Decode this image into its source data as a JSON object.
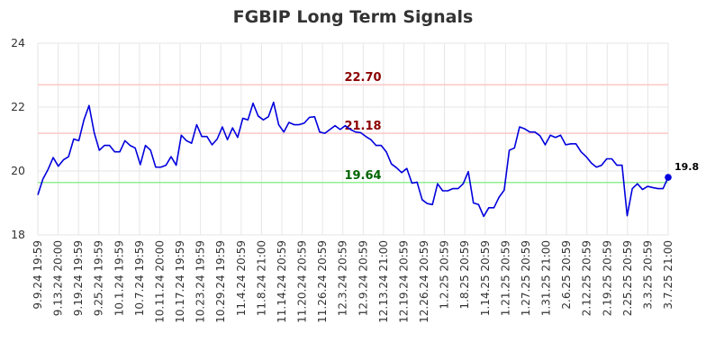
{
  "chart_data": {
    "type": "line",
    "title": "FGBIP Long Term Signals",
    "xlabel": "",
    "ylabel": "",
    "ylim": [
      18,
      24
    ],
    "yticks": [
      "18",
      "20",
      "22",
      "24"
    ],
    "grid": true,
    "xtick_labels": [
      "9.9.24 19:59",
      "9.13.24 20:00",
      "9.19.24 19:59",
      "9.25.24 19:59",
      "10.1.24 19:59",
      "10.7.24 19:59",
      "10.11.24 20:00",
      "10.17.24 19:59",
      "10.23.24 19:59",
      "10.29.24 19:59",
      "11.4.24 20:59",
      "11.8.24 21:00",
      "11.14.24 20:59",
      "11.20.24 20:59",
      "11.26.24 20:59",
      "12.3.24 20:59",
      "12.9.24 20:59",
      "12.13.24 21:00",
      "12.19.24 20:59",
      "12.26.24 20:59",
      "1.2.25 20:59",
      "1.8.25 20:59",
      "1.14.25 20:59",
      "1.21.25 20:59",
      "1.27.25 20:59",
      "1.31.25 21:00",
      "2.6.25 20:59",
      "2.12.25 20:59",
      "2.19.25 20:59",
      "2.25.25 20:59",
      "3.3.25 20:59",
      "3.7.25 21:00"
    ],
    "reference_lines": [
      {
        "value": 22.7,
        "label": "22.70",
        "line_color": "#ffc8c8",
        "label_color": "#8b0000"
      },
      {
        "value": 21.18,
        "label": "21.18",
        "line_color": "#ffc8c8",
        "label_color": "#8b0000"
      },
      {
        "value": 19.64,
        "label": "19.64",
        "line_color": "#90ee90",
        "label_color": "#006400"
      }
    ],
    "series": [
      {
        "color": "#0000dd",
        "values": [
          19.25,
          19.75,
          20.05,
          20.42,
          20.15,
          20.35,
          20.45,
          21.0,
          20.95,
          21.6,
          22.05,
          21.2,
          20.65,
          20.8,
          20.8,
          20.6,
          20.6,
          20.95,
          20.8,
          20.72,
          20.2,
          20.8,
          20.65,
          20.12,
          20.12,
          20.18,
          20.45,
          20.18,
          21.12,
          20.95,
          20.87,
          21.45,
          21.08,
          21.08,
          20.82,
          21.0,
          21.38,
          20.98,
          21.35,
          21.05,
          21.65,
          21.6,
          22.12,
          21.72,
          21.6,
          21.7,
          22.15,
          21.45,
          21.22,
          21.52,
          21.45,
          21.45,
          21.5,
          21.68,
          21.7,
          21.22,
          21.18,
          21.3,
          21.42,
          21.3,
          21.42,
          21.3,
          21.22,
          21.2,
          21.08,
          20.98,
          20.8,
          20.8,
          20.6,
          20.22,
          20.1,
          19.95,
          20.08,
          19.62,
          19.65,
          19.1,
          18.98,
          18.95,
          19.6,
          19.38,
          19.38,
          19.45,
          19.45,
          19.6,
          19.98,
          19.0,
          18.95,
          18.58,
          18.85,
          18.85,
          19.18,
          19.4,
          20.65,
          20.72,
          21.38,
          21.32,
          21.22,
          21.22,
          21.1,
          20.82,
          21.12,
          21.05,
          21.12,
          20.82,
          20.85,
          20.85,
          20.6,
          20.45,
          20.25,
          20.12,
          20.18,
          20.38,
          20.38,
          20.18,
          20.18,
          18.6,
          19.45,
          19.6,
          19.42,
          19.52,
          19.48,
          19.45,
          19.45,
          19.8
        ]
      }
    ],
    "last_value_label": "19.8"
  }
}
